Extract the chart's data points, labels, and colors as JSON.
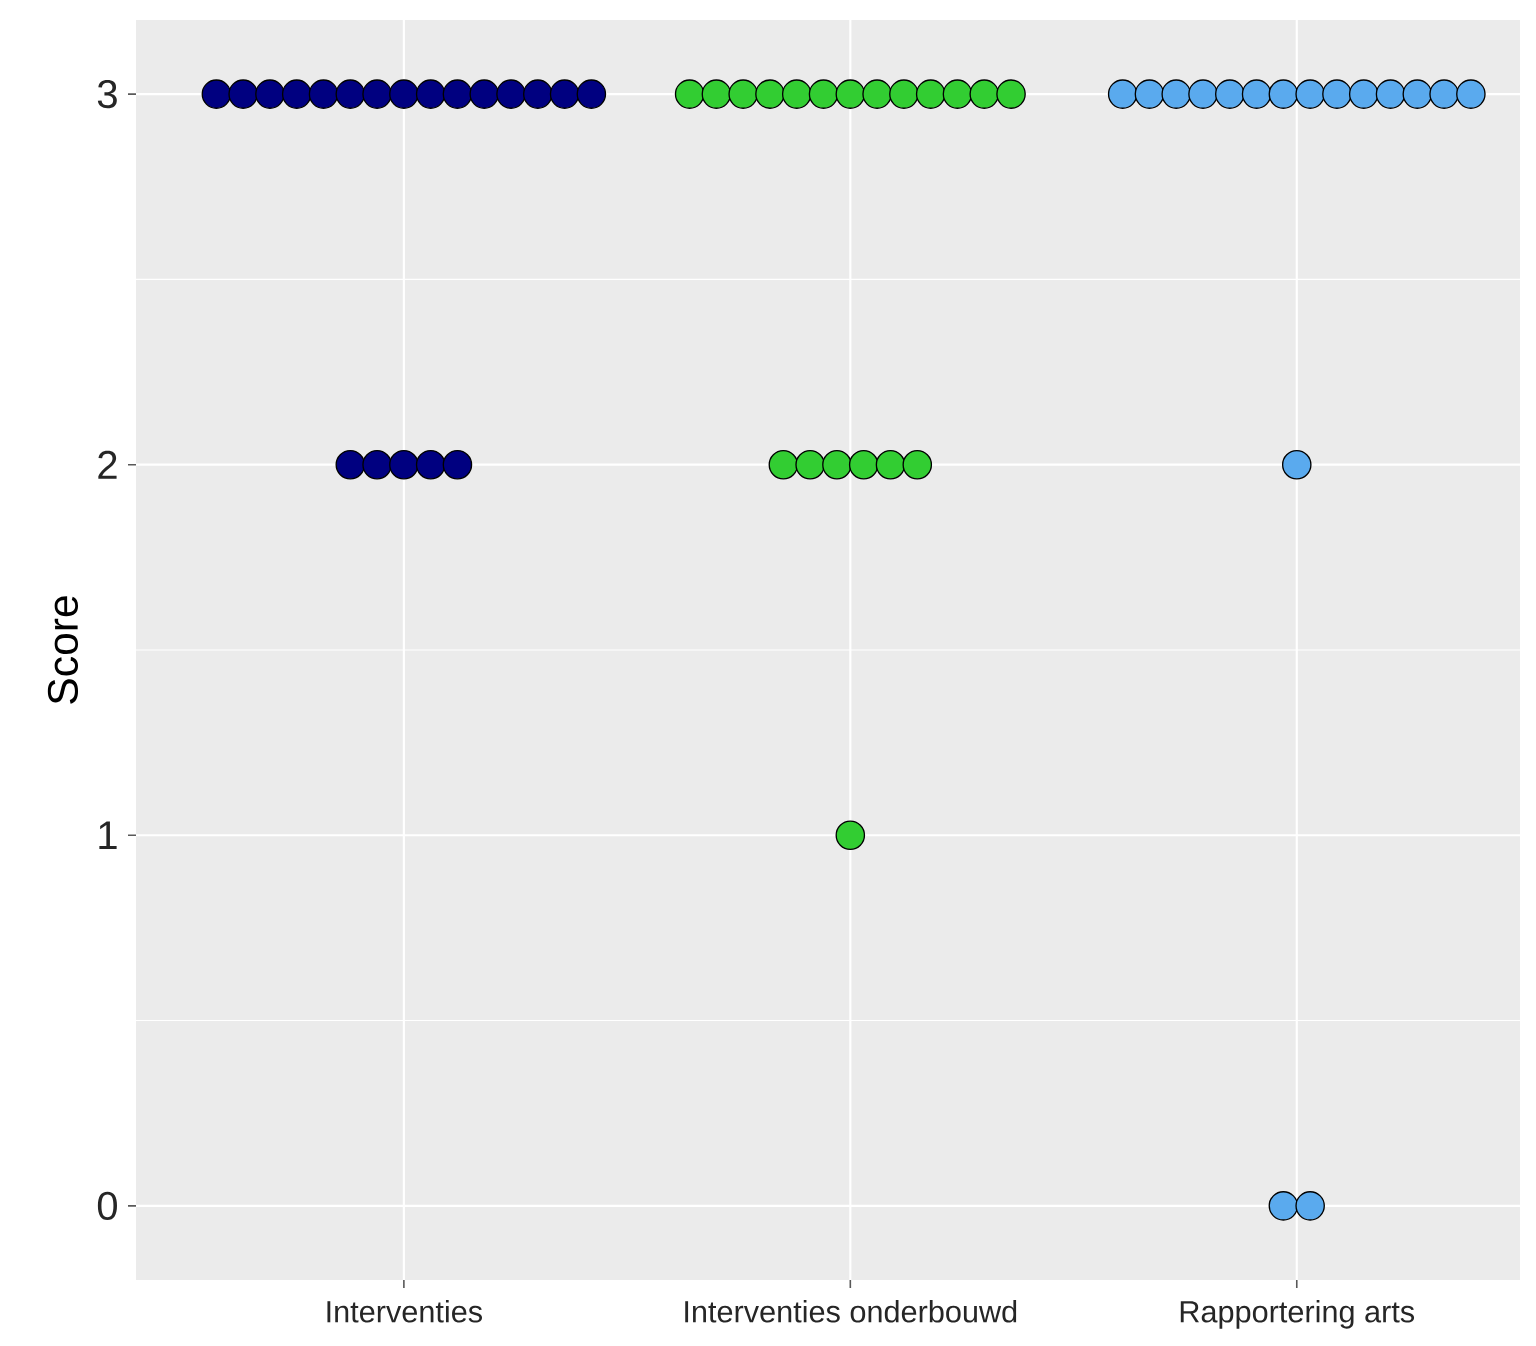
{
  "chart_data": {
    "type": "scatter",
    "ylabel": "Score",
    "categories": [
      "Interventies",
      "Interventies onderbouwd",
      "Rapportering arts"
    ],
    "series": [
      {
        "color": "#000080",
        "x": [
          "Interventies",
          "Interventies",
          "Interventies",
          "Interventies",
          "Interventies",
          "Interventies",
          "Interventies",
          "Interventies",
          "Interventies",
          "Interventies",
          "Interventies",
          "Interventies",
          "Interventies",
          "Interventies",
          "Interventies",
          "Interventies",
          "Interventies",
          "Interventies",
          "Interventies",
          "Interventies"
        ],
        "values": [
          3,
          3,
          3,
          3,
          3,
          3,
          3,
          3,
          3,
          3,
          3,
          3,
          3,
          3,
          3,
          2,
          2,
          2,
          2,
          2
        ]
      },
      {
        "color": "#32cd32",
        "x": [
          "Interventies onderbouwd",
          "Interventies onderbouwd",
          "Interventies onderbouwd",
          "Interventies onderbouwd",
          "Interventies onderbouwd",
          "Interventies onderbouwd",
          "Interventies onderbouwd",
          "Interventies onderbouwd",
          "Interventies onderbouwd",
          "Interventies onderbouwd",
          "Interventies onderbouwd",
          "Interventies onderbouwd",
          "Interventies onderbouwd",
          "Interventies onderbouwd",
          "Interventies onderbouwd",
          "Interventies onderbouwd",
          "Interventies onderbouwd",
          "Interventies onderbouwd",
          "Interventies onderbouwd",
          "Interventies onderbouwd"
        ],
        "values": [
          3,
          3,
          3,
          3,
          3,
          3,
          3,
          3,
          3,
          3,
          3,
          3,
          3,
          2,
          2,
          2,
          2,
          2,
          2,
          1
        ]
      },
      {
        "color": "#5aaaee",
        "x": [
          "Rapportering arts",
          "Rapportering arts",
          "Rapportering arts",
          "Rapportering arts",
          "Rapportering arts",
          "Rapportering arts",
          "Rapportering arts",
          "Rapportering arts",
          "Rapportering arts",
          "Rapportering arts",
          "Rapportering arts",
          "Rapportering arts",
          "Rapportering arts",
          "Rapportering arts",
          "Rapportering arts",
          "Rapportering arts",
          "Rapportering arts"
        ],
        "values": [
          3,
          3,
          3,
          3,
          3,
          3,
          3,
          3,
          3,
          3,
          3,
          3,
          3,
          3,
          2,
          0,
          0
        ]
      }
    ],
    "ylim": [
      -0.2,
      3.2
    ],
    "yticks": [
      0,
      1,
      2,
      3
    ],
    "grid": true
  }
}
